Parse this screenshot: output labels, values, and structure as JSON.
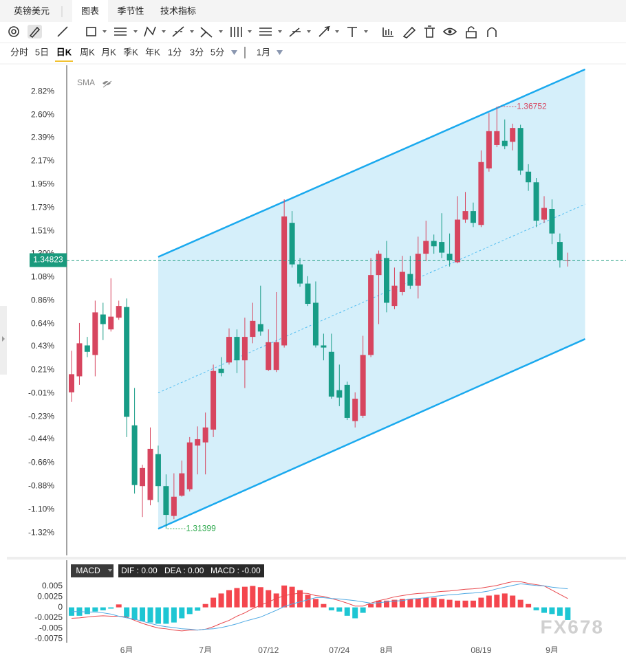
{
  "header": {
    "tabs": [
      "英镑美元",
      "图表",
      "季节性",
      "技术指标"
    ],
    "active_tab": 1
  },
  "timeframes": {
    "items": [
      "分时",
      "5日",
      "日K",
      "周K",
      "月K",
      "季K",
      "年K",
      "1分",
      "3分",
      "5分"
    ],
    "active": 2,
    "range": "1月"
  },
  "watermark": "FX678",
  "chart_data": [
    {
      "type": "candlestick",
      "indicator_label": "SMA",
      "categories": [
        null,
        null,
        null,
        null,
        null,
        null,
        null,
        "6月",
        null,
        null,
        null,
        null,
        null,
        null,
        null,
        null,
        null,
        "7月",
        null,
        null,
        null,
        null,
        null,
        null,
        null,
        "07/12",
        null,
        null,
        null,
        null,
        null,
        null,
        null,
        null,
        "07/24",
        null,
        null,
        null,
        null,
        null,
        "8月",
        null,
        null,
        null,
        null,
        null,
        null,
        null,
        null,
        null,
        null,
        null,
        "08/19",
        null,
        null,
        null,
        null,
        null,
        null,
        null,
        null,
        "9月",
        null,
        null
      ],
      "open": [
        0.0,
        0.15,
        0.44,
        0.35,
        0.73,
        0.59,
        0.7,
        0.8,
        -0.31,
        -0.88,
        -1.01,
        -0.58,
        -0.88,
        -1.16,
        -0.97,
        -0.91,
        -0.5,
        -0.47,
        -0.35,
        0.22,
        0.28,
        0.52,
        0.3,
        0.52,
        0.64,
        0.21,
        0.21,
        0.44,
        1.59,
        1.2,
        1.02,
        0.84,
        0.44,
        0.38,
        0.02,
        0.07,
        -0.27,
        -0.22,
        0.35,
        1.1,
        1.26,
        0.81,
        0.94,
        1.11,
        1.0,
        1.3,
        1.42,
        1.41,
        1.3,
        1.22,
        1.62,
        1.7,
        1.57,
        2.1,
        2.32,
        2.36,
        2.35,
        2.48,
        2.07,
        1.97,
        1.62,
        1.72,
        1.41,
        1.24
      ],
      "high": [
        0.39,
        0.65,
        0.52,
        0.86,
        0.84,
        1.07,
        0.86,
        0.88,
        0.04,
        -0.68,
        -0.33,
        -0.5,
        -0.77,
        -0.76,
        -0.64,
        -0.42,
        -0.32,
        -0.19,
        0.26,
        0.33,
        0.6,
        0.59,
        0.7,
        0.84,
        1.0,
        0.59,
        0.94,
        1.81,
        1.7,
        1.26,
        1.09,
        1.04,
        0.55,
        0.55,
        0.26,
        0.1,
        0.0,
        0.53,
        1.26,
        1.33,
        1.42,
        1.17,
        1.28,
        1.28,
        1.46,
        1.61,
        1.48,
        1.68,
        1.49,
        1.84,
        1.88,
        1.78,
        2.27,
        2.62,
        2.68,
        2.56,
        2.52,
        2.51,
        2.14,
        2.01,
        1.84,
        1.81,
        1.49,
        1.31
      ],
      "low": [
        -0.09,
        0.07,
        0.33,
        0.15,
        0.49,
        0.57,
        0.68,
        -0.42,
        -0.95,
        -1.17,
        -1.06,
        -1.03,
        -1.28,
        -1.19,
        -0.98,
        -0.93,
        -0.77,
        -0.77,
        -0.42,
        0.15,
        0.26,
        0.18,
        0.04,
        0.46,
        0.53,
        0.2,
        0.19,
        0.42,
        1.17,
        0.99,
        0.81,
        0.42,
        0.3,
        -0.06,
        -0.13,
        -0.26,
        -0.33,
        -0.24,
        0.33,
        0.64,
        0.75,
        0.78,
        0.91,
        0.97,
        0.88,
        1.23,
        1.3,
        1.26,
        1.18,
        1.21,
        1.59,
        1.55,
        1.55,
        2.07,
        2.3,
        2.28,
        2.27,
        2.04,
        1.89,
        1.55,
        1.59,
        1.39,
        1.17,
        1.18
      ],
      "close": [
        0.17,
        0.46,
        0.38,
        0.75,
        0.64,
        0.71,
        0.81,
        -0.23,
        -0.87,
        -0.71,
        -0.53,
        -0.88,
        -1.15,
        -0.98,
        -0.76,
        -0.47,
        -0.44,
        -0.33,
        0.2,
        0.18,
        0.52,
        0.3,
        0.52,
        0.67,
        0.57,
        0.47,
        0.47,
        1.65,
        1.2,
        1.02,
        0.83,
        0.44,
        0.42,
        -0.04,
        -0.05,
        -0.24,
        -0.06,
        0.35,
        1.1,
        1.3,
        0.84,
        1.0,
        1.13,
        1.0,
        1.3,
        1.42,
        1.37,
        1.31,
        1.24,
        1.62,
        1.7,
        1.59,
        2.16,
        2.45,
        2.45,
        2.31,
        2.48,
        2.08,
        1.97,
        1.61,
        1.73,
        1.49,
        1.24,
        1.24
      ],
      "up_color": "#d7455f",
      "down_color": "#179c86",
      "ylim": [
        -1.53,
        3.1
      ],
      "yticks": [
        {
          "value": 2.82,
          "label": "2.82%"
        },
        {
          "value": 2.6,
          "label": "2.60%"
        },
        {
          "value": 2.39,
          "label": "2.39%"
        },
        {
          "value": 2.17,
          "label": "2.17%"
        },
        {
          "value": 1.95,
          "label": "1.95%"
        },
        {
          "value": 1.73,
          "label": "1.73%"
        },
        {
          "value": 1.51,
          "label": "1.51%"
        },
        {
          "value": 1.3,
          "label": "1.30%"
        },
        {
          "value": 1.08,
          "label": "1.08%"
        },
        {
          "value": 0.86,
          "label": "0.86%"
        },
        {
          "value": 0.64,
          "label": "0.64%"
        },
        {
          "value": 0.43,
          "label": "0.43%"
        },
        {
          "value": 0.21,
          "label": "0.21%"
        },
        {
          "value": -0.01,
          "label": "-0.01%"
        },
        {
          "value": -0.23,
          "label": "-0.23%"
        },
        {
          "value": -0.44,
          "label": "-0.44%"
        },
        {
          "value": -0.66,
          "label": "-0.66%"
        },
        {
          "value": -0.88,
          "label": "-0.88%"
        },
        {
          "value": -1.1,
          "label": "-1.10%"
        },
        {
          "value": -1.32,
          "label": "-1.32%"
        }
      ],
      "channel": {
        "start_index": 11,
        "end_index": 65.2,
        "upper": [
          1.27,
          3.03
        ],
        "lower": [
          -1.28,
          0.5
        ],
        "color": "#1aa9ee",
        "fill": "#d5effa"
      },
      "markers": [
        {
          "text": "1.36752",
          "index": 54,
          "at": "high",
          "color": "#d7455f"
        },
        {
          "text": "1.31399",
          "index": 12,
          "at": "low",
          "color": "#2aa84a"
        }
      ],
      "last_price": {
        "text": "1.34823",
        "y": 1.24,
        "color": "#1a9a7d"
      }
    },
    {
      "type": "macd",
      "indicator": "MACD",
      "readout": [
        "DIF : 0.00",
        "DEA : 0.00",
        "MACD : -0.00"
      ],
      "histogram": {
        "values": [
          -0.002,
          -0.002,
          -0.0016,
          -0.001,
          -0.0007,
          -0.0003,
          0.0007,
          -0.0023,
          -0.003,
          -0.0033,
          -0.0036,
          -0.0039,
          -0.0039,
          -0.0036,
          -0.0026,
          -0.0016,
          -0.0008,
          0.0008,
          0.0023,
          0.0033,
          0.0041,
          0.0046,
          0.0049,
          0.0051,
          0.0048,
          0.0041,
          0.0033,
          0.0052,
          0.0049,
          0.0041,
          0.003,
          0.002,
          0.0008,
          -0.0007,
          -0.001,
          -0.002,
          -0.0026,
          -0.0013,
          0.0008,
          0.0016,
          0.0016,
          0.0018,
          0.002,
          0.002,
          0.0021,
          0.0023,
          0.0023,
          0.002,
          0.0018,
          0.0016,
          0.0016,
          0.0016,
          0.0023,
          0.0028,
          0.003,
          0.0033,
          0.0028,
          0.0018,
          0.0008,
          -0.0007,
          -0.0013,
          -0.0016,
          -0.002,
          -0.003
        ],
        "up_color": "#f4464e",
        "down_color": "#1ec6d3"
      },
      "series": [
        {
          "color": "#e8474c",
          "values": [
            -0.0026,
            -0.0025,
            -0.0023,
            -0.0021,
            -0.002,
            -0.0021,
            -0.0021,
            -0.0023,
            -0.0031,
            -0.0038,
            -0.0044,
            -0.0049,
            -0.0051,
            -0.0054,
            -0.0056,
            -0.0054,
            -0.0054,
            -0.0052,
            -0.0046,
            -0.0038,
            -0.0031,
            -0.0021,
            -0.0013,
            -0.0003,
            0.0005,
            0.0013,
            0.0021,
            0.0028,
            0.0031,
            0.0034,
            0.0033,
            0.0028,
            0.0026,
            0.0021,
            0.0016,
            0.001,
            0.0003,
            0.0003,
            0.001,
            0.0016,
            0.002,
            0.0025,
            0.0028,
            0.0031,
            0.0033,
            0.0034,
            0.0036,
            0.0038,
            0.0039,
            0.0041,
            0.0043,
            0.0044,
            0.0046,
            0.0049,
            0.0052,
            0.0057,
            0.0061,
            0.0061,
            0.0057,
            0.0054,
            0.0051,
            0.0041,
            0.0031,
            0.0021
          ]
        },
        {
          "color": "#4fa9e3",
          "values": [
            -0.001,
            -0.001,
            -0.0011,
            -0.0011,
            -0.0013,
            -0.0016,
            -0.0021,
            -0.0025,
            -0.0028,
            -0.0033,
            -0.0038,
            -0.0043,
            -0.0046,
            -0.0048,
            -0.0051,
            -0.0052,
            -0.0054,
            -0.0052,
            -0.0051,
            -0.0048,
            -0.0044,
            -0.0039,
            -0.0033,
            -0.0028,
            -0.0023,
            -0.0015,
            -0.0007,
            0.0002,
            0.0008,
            0.0013,
            0.0018,
            0.0023,
            0.0023,
            0.0021,
            0.002,
            0.0018,
            0.0016,
            0.0013,
            0.001,
            0.0011,
            0.0013,
            0.0015,
            0.0016,
            0.002,
            0.0021,
            0.0023,
            0.0026,
            0.0028,
            0.003,
            0.0031,
            0.0033,
            0.0034,
            0.0036,
            0.0039,
            0.0044,
            0.0048,
            0.0052,
            0.0056,
            0.0054,
            0.0052,
            0.0051,
            0.0048,
            0.0046,
            0.0044
          ]
        }
      ],
      "ylim": [
        -0.0084,
        0.0068
      ],
      "yticks": [
        0.005,
        0.0025,
        0,
        -0.0025,
        -0.005,
        -0.0075
      ]
    }
  ]
}
